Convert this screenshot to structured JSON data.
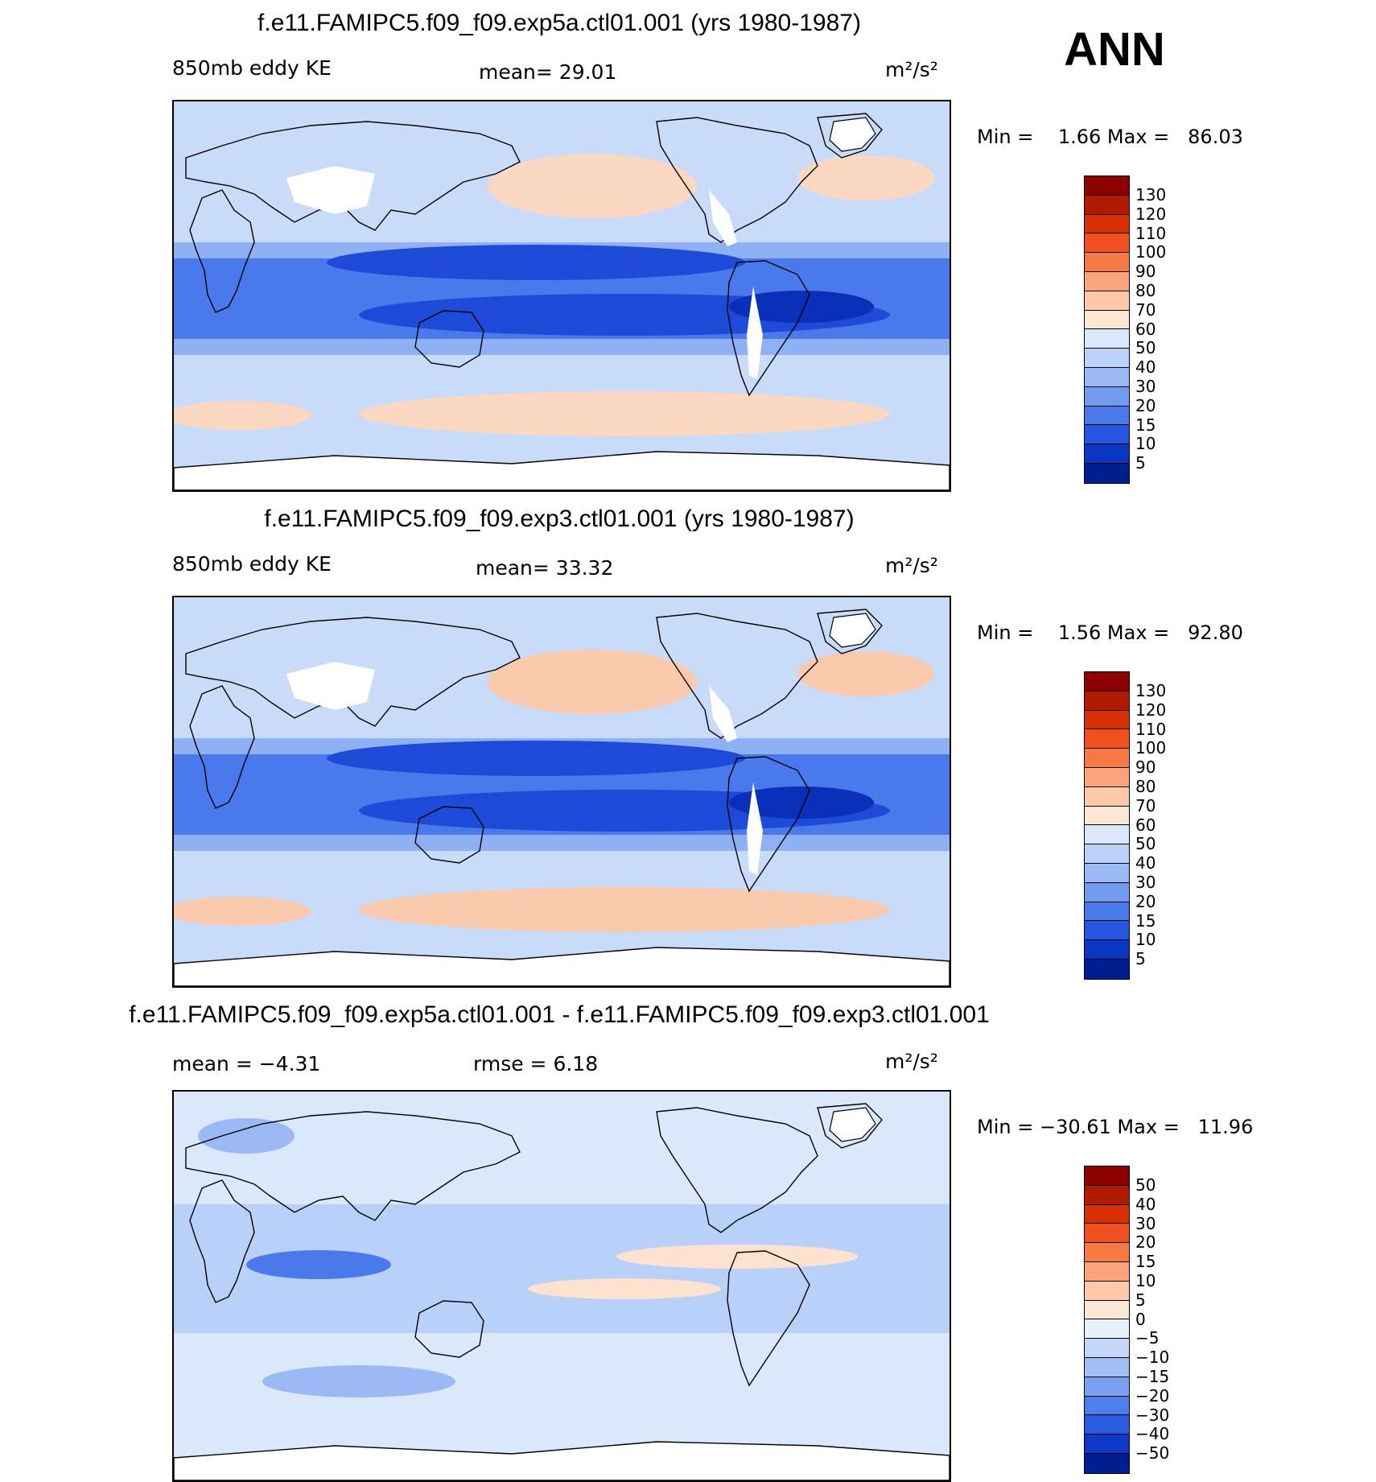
{
  "season": "ANN",
  "panels": [
    {
      "title": "f.e11.FAMIPC5.f09_f09.exp5a.ctl01.001 (yrs 1980-1987)",
      "left_label": "850mb eddy KE",
      "center_label": "mean=   29.01",
      "units": "m²/s²",
      "minmax": "Min =    1.66 Max =   86.03",
      "colorbar": {
        "labels": [
          "130",
          "120",
          "110",
          "100",
          "90",
          "80",
          "70",
          "60",
          "50",
          "40",
          "30",
          "20",
          "15",
          "10",
          "5"
        ],
        "colors": [
          "#8c0000",
          "#b01a00",
          "#d83000",
          "#f05020",
          "#f77a45",
          "#fba47c",
          "#fdc9a8",
          "#fde8d6",
          "#dbe8fb",
          "#bcd2f8",
          "#9bbaf5",
          "#729bf0",
          "#4a79eb",
          "#2656df",
          "#0a36c3",
          "#001e90"
        ]
      },
      "field_colors": {
        "land": "#ffffff",
        "high": "#fcd7c2",
        "mid": "#c8dbf8",
        "low": "#8fb1f3",
        "lower": "#4a79eb",
        "lowest": "#1d4bd8",
        "min": "#0a2fb8"
      }
    },
    {
      "title": "f.e11.FAMIPC5.f09_f09.exp3.ctl01.001 (yrs 1980-1987)",
      "left_label": "850mb eddy KE",
      "center_label": "mean=   33.32",
      "units": "m²/s²",
      "minmax": "Min =    1.56 Max =   92.80",
      "colorbar": {
        "labels": [
          "130",
          "120",
          "110",
          "100",
          "90",
          "80",
          "70",
          "60",
          "50",
          "40",
          "30",
          "20",
          "15",
          "10",
          "5"
        ],
        "colors": [
          "#8c0000",
          "#b01a00",
          "#d83000",
          "#f05020",
          "#f77a45",
          "#fba47c",
          "#fdc9a8",
          "#fde8d6",
          "#dbe8fb",
          "#bcd2f8",
          "#9bbaf5",
          "#729bf0",
          "#4a79eb",
          "#2656df",
          "#0a36c3",
          "#001e90"
        ]
      },
      "field_colors": {
        "land": "#ffffff",
        "high": "#fbc9ad",
        "mid": "#c8dbf8",
        "low": "#8fb1f3",
        "lower": "#4a79eb",
        "lowest": "#1d4bd8",
        "min": "#0a2fb8"
      }
    },
    {
      "title": "f.e11.FAMIPC5.f09_f09.exp5a.ctl01.001 - f.e11.FAMIPC5.f09_f09.exp3.ctl01.001",
      "left_label": "mean =   −4.31",
      "center_label": "rmse =    6.18",
      "units": "m²/s²",
      "minmax": "Min = −30.61 Max =   11.96",
      "colorbar": {
        "labels": [
          "50",
          "40",
          "30",
          "20",
          "15",
          "10",
          "5",
          "0",
          "−5",
          "−10",
          "−15",
          "−20",
          "−30",
          "−40",
          "−50"
        ],
        "colors": [
          "#8c0000",
          "#b01a00",
          "#d83000",
          "#f05020",
          "#f77a45",
          "#fba47c",
          "#fdc9a8",
          "#fde8d6",
          "#e8f0fc",
          "#c4d7f8",
          "#a1bff5",
          "#7aa1f0",
          "#4e7eeb",
          "#2a5be0",
          "#0d37c4",
          "#001e90"
        ]
      },
      "field_colors": {
        "land": "#ffffff",
        "high": "#fde2cf",
        "mid": "#dbe8fb",
        "low": "#b9d0f8",
        "lower": "#9bbaf5",
        "lowest": "#4a79eb",
        "min": "#2656df"
      }
    }
  ]
}
